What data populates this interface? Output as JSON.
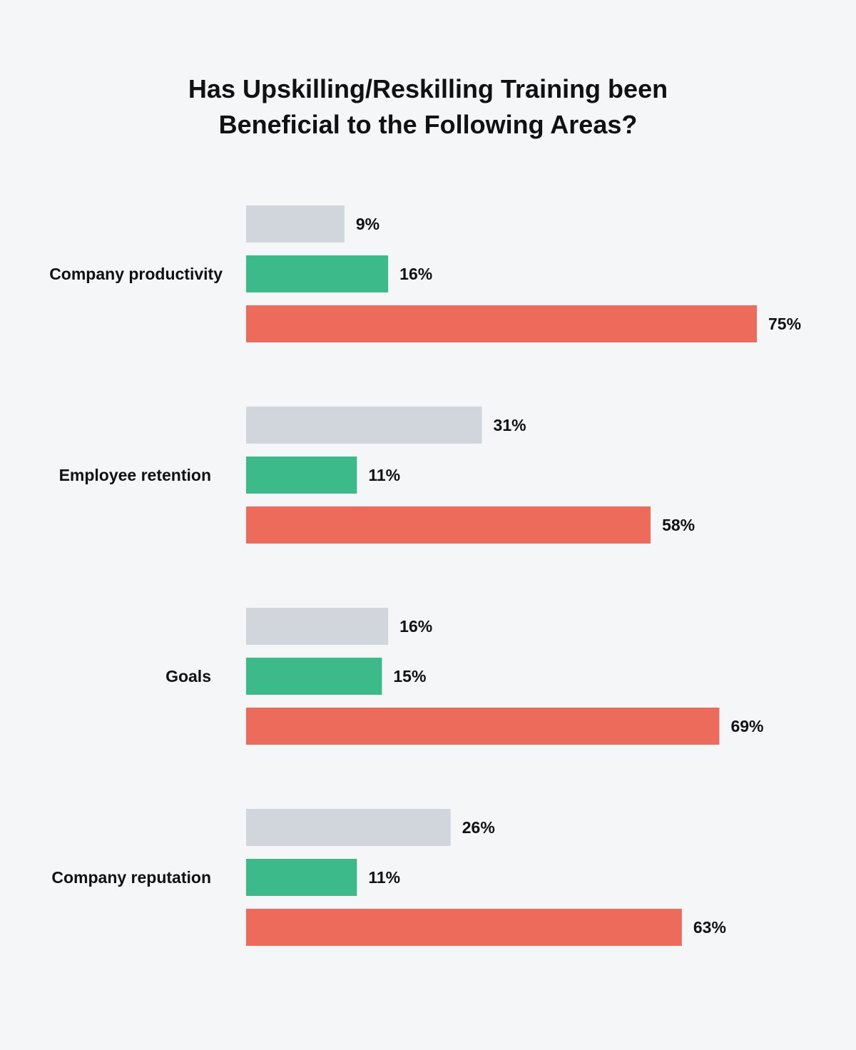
{
  "chart_data": {
    "type": "bar",
    "orientation": "horizontal",
    "title_lines": [
      "Has Upskilling/Reskilling Training been",
      "Beneficial to the Following Areas?"
    ],
    "categories": [
      "Company productivity",
      "Employee retention",
      "Goals",
      "Company reputation"
    ],
    "series": [
      {
        "values": [
          9,
          31,
          16,
          26
        ],
        "color": "#d1d6dc"
      },
      {
        "values": [
          16,
          11,
          15,
          11
        ],
        "color": "#3dba8a"
      },
      {
        "values": [
          75,
          58,
          69,
          63
        ],
        "color": "#ec6b5a"
      }
    ],
    "value_suffix": "%",
    "legend": "none",
    "grid": false,
    "background": "#f4f6f8"
  }
}
